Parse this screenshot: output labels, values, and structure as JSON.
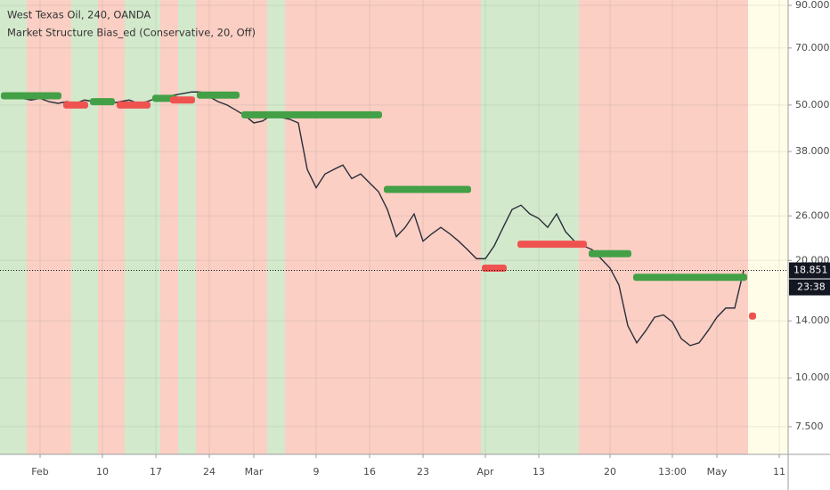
{
  "chart_data": {
    "type": "line",
    "title": "West Texas Oil, 240, OANDA",
    "subtitle": "Market Structure Bias_ed (Conservative, 20, Off)",
    "categories": [
      null,
      null,
      null,
      null,
      "Feb",
      null,
      null,
      null,
      null,
      null,
      null,
      "10",
      null,
      null,
      null,
      null,
      null,
      "17",
      null,
      null,
      null,
      null,
      null,
      "24",
      null,
      null,
      null,
      null,
      "Mar",
      null,
      null,
      null,
      null,
      null,
      null,
      "9",
      null,
      null,
      null,
      null,
      null,
      "16",
      null,
      null,
      null,
      null,
      null,
      "23",
      null,
      null,
      null,
      null,
      null,
      null,
      "Apr",
      null,
      null,
      null,
      null,
      null,
      "13",
      null,
      null,
      null,
      null,
      null,
      null,
      null,
      "20",
      null,
      null,
      null,
      null,
      null,
      null,
      "13:00",
      null,
      null,
      null,
      null,
      "May",
      null,
      null,
      null,
      null,
      null,
      null,
      "11"
    ],
    "values": [
      52,
      52.5,
      52,
      51.5,
      52,
      51,
      50.5,
      51,
      50.5,
      51.5,
      51,
      51,
      50.5,
      51,
      51.5,
      50.5,
      51,
      52,
      52.5,
      53,
      53.5,
      54,
      54,
      52.5,
      51,
      50,
      48.5,
      47,
      45,
      45.5,
      47.2,
      46.5,
      46,
      45,
      34.2,
      30.7,
      33.3,
      34.2,
      35.1,
      32.4,
      33.3,
      31.6,
      30,
      27,
      23,
      24.3,
      26.3,
      22.4,
      23.4,
      24.3,
      23.4,
      22.4,
      21.3,
      20.2,
      20.2,
      21.8,
      24.3,
      27,
      27.7,
      26.3,
      25.6,
      24.3,
      26.3,
      23.7,
      22.4,
      21.8,
      21.3,
      20.2,
      19.1,
      17.3,
      13.6,
      12.3,
      13.2,
      14.3,
      14.5,
      13.9,
      12.6,
      12.1,
      12.3,
      13.2,
      14.3,
      15.1,
      15.1,
      18.851,
      null,
      null,
      null,
      null
    ],
    "color": "#2a2e39",
    "log_scale": true,
    "ylim": [
      6.37,
      92.9
    ],
    "yticks": [
      {
        "value": 7.5,
        "label": "7.500"
      },
      {
        "value": 10,
        "label": "10.000"
      },
      {
        "value": 14,
        "label": "14.000"
      },
      {
        "value": 20,
        "label": "20.000"
      },
      {
        "value": 26,
        "label": "26.000"
      },
      {
        "value": 38,
        "label": "38.000"
      },
      {
        "value": 50,
        "label": "50.000"
      },
      {
        "value": 70,
        "label": "70.000"
      },
      {
        "value": 90,
        "label": "90.000"
      }
    ],
    "grid": true,
    "last_price": 18.851,
    "countdown": "23:38",
    "bias_segments": [
      {
        "color": "#43a047",
        "start": 0,
        "end": 6,
        "value": 52.8
      },
      {
        "color": "#ef5350",
        "start": 7,
        "end": 9,
        "value": 50
      },
      {
        "color": "#43a047",
        "start": 10,
        "end": 12,
        "value": 51
      },
      {
        "color": "#ef5350",
        "start": 13,
        "end": 16,
        "value": 50
      },
      {
        "color": "#43a047",
        "start": 17,
        "end": 19,
        "value": 52
      },
      {
        "color": "#ef5350",
        "start": 19,
        "end": 21,
        "value": 51.5
      },
      {
        "color": "#43a047",
        "start": 22,
        "end": 26,
        "value": 53
      },
      {
        "color": "#43a047",
        "start": 27,
        "end": 42,
        "value": 47.2
      },
      {
        "color": "#43a047",
        "start": 43,
        "end": 52,
        "value": 30.4
      },
      {
        "color": "#ef5350",
        "start": 54,
        "end": 56,
        "value": 19.1
      },
      {
        "color": "#ef5350",
        "start": 58,
        "end": 65,
        "value": 22
      },
      {
        "color": "#43a047",
        "start": 66,
        "end": 70,
        "value": 20.8
      },
      {
        "color": "#43a047",
        "start": 71,
        "end": 83,
        "value": 18.1
      },
      {
        "color": "#ef5350",
        "start": 84,
        "end": 84,
        "value": 14.4
      }
    ],
    "background_bands": [
      {
        "color": "#d3e9cc",
        "start": 0,
        "end": 2
      },
      {
        "color": "#fbcfc4",
        "start": 3,
        "end": 7
      },
      {
        "color": "#d3e9cc",
        "start": 8,
        "end": 10
      },
      {
        "color": "#fbcfc4",
        "start": 11,
        "end": 13
      },
      {
        "color": "#d3e9cc",
        "start": 14,
        "end": 17
      },
      {
        "color": "#fbcfc4",
        "start": 18,
        "end": 19
      },
      {
        "color": "#d3e9cc",
        "start": 20,
        "end": 21
      },
      {
        "color": "#fbcfc4",
        "start": 22,
        "end": 29
      },
      {
        "color": "#d3e9cc",
        "start": 30,
        "end": 31
      },
      {
        "color": "#fbcfc4",
        "start": 32,
        "end": 53
      },
      {
        "color": "#d3e9cc",
        "start": 54,
        "end": 64
      },
      {
        "color": "#fbcfc4",
        "start": 65,
        "end": 83
      }
    ]
  }
}
